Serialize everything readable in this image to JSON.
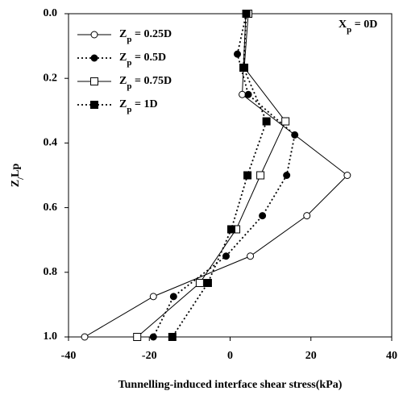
{
  "chart_data": {
    "type": "line",
    "x_label": "Tunnelling-induced interface shear stress(kPa)",
    "y_label": "Z/Lp",
    "annotation": "Xp = 0D",
    "xlim": [
      -40,
      40
    ],
    "xticks": [
      -40,
      -20,
      0,
      20,
      40
    ],
    "ylim": [
      0,
      1
    ],
    "y_inverted": true,
    "yticks": [
      {
        "value": 0,
        "label": "0.0"
      },
      0.2,
      0.4,
      0.6,
      0.8,
      {
        "value": 1,
        "label": "1.0"
      }
    ],
    "legend": "top-left",
    "series": [
      {
        "name": "Zp = 0.25D",
        "color": "#000000",
        "marker": "circle-open",
        "line": "solid",
        "x": [
          3.9,
          3,
          29,
          19,
          5,
          -19,
          -36
        ],
        "y": [
          0,
          0.25,
          0.5,
          0.625,
          0.75,
          0.875,
          1.0
        ]
      },
      {
        "name": "Zp = 0.5D",
        "color": "#000000",
        "marker": "circle-filled",
        "line": "dotted",
        "x": [
          4,
          1.8,
          4.5,
          16,
          14,
          8,
          -1,
          -14,
          -19
        ],
        "y": [
          0,
          0.125,
          0.25,
          0.375,
          0.5,
          0.625,
          0.75,
          0.875,
          1.0
        ]
      },
      {
        "name": "Zp = 0.75D",
        "color": "#000000",
        "marker": "square-open",
        "line": "solid",
        "x": [
          4.5,
          3.5,
          13.7,
          7.5,
          1.5,
          -7.5,
          -23
        ],
        "y": [
          0,
          0.167,
          0.333,
          0.5,
          0.667,
          0.833,
          1.0
        ]
      },
      {
        "name": "Zp = 1D",
        "color": "#000000",
        "marker": "square-filled",
        "line": "dotted",
        "x": [
          4,
          3.3,
          9,
          4.3,
          0.3,
          -5.5,
          -14.3
        ],
        "y": [
          0,
          0.167,
          0.333,
          0.5,
          0.667,
          0.833,
          1.0
        ]
      }
    ]
  }
}
